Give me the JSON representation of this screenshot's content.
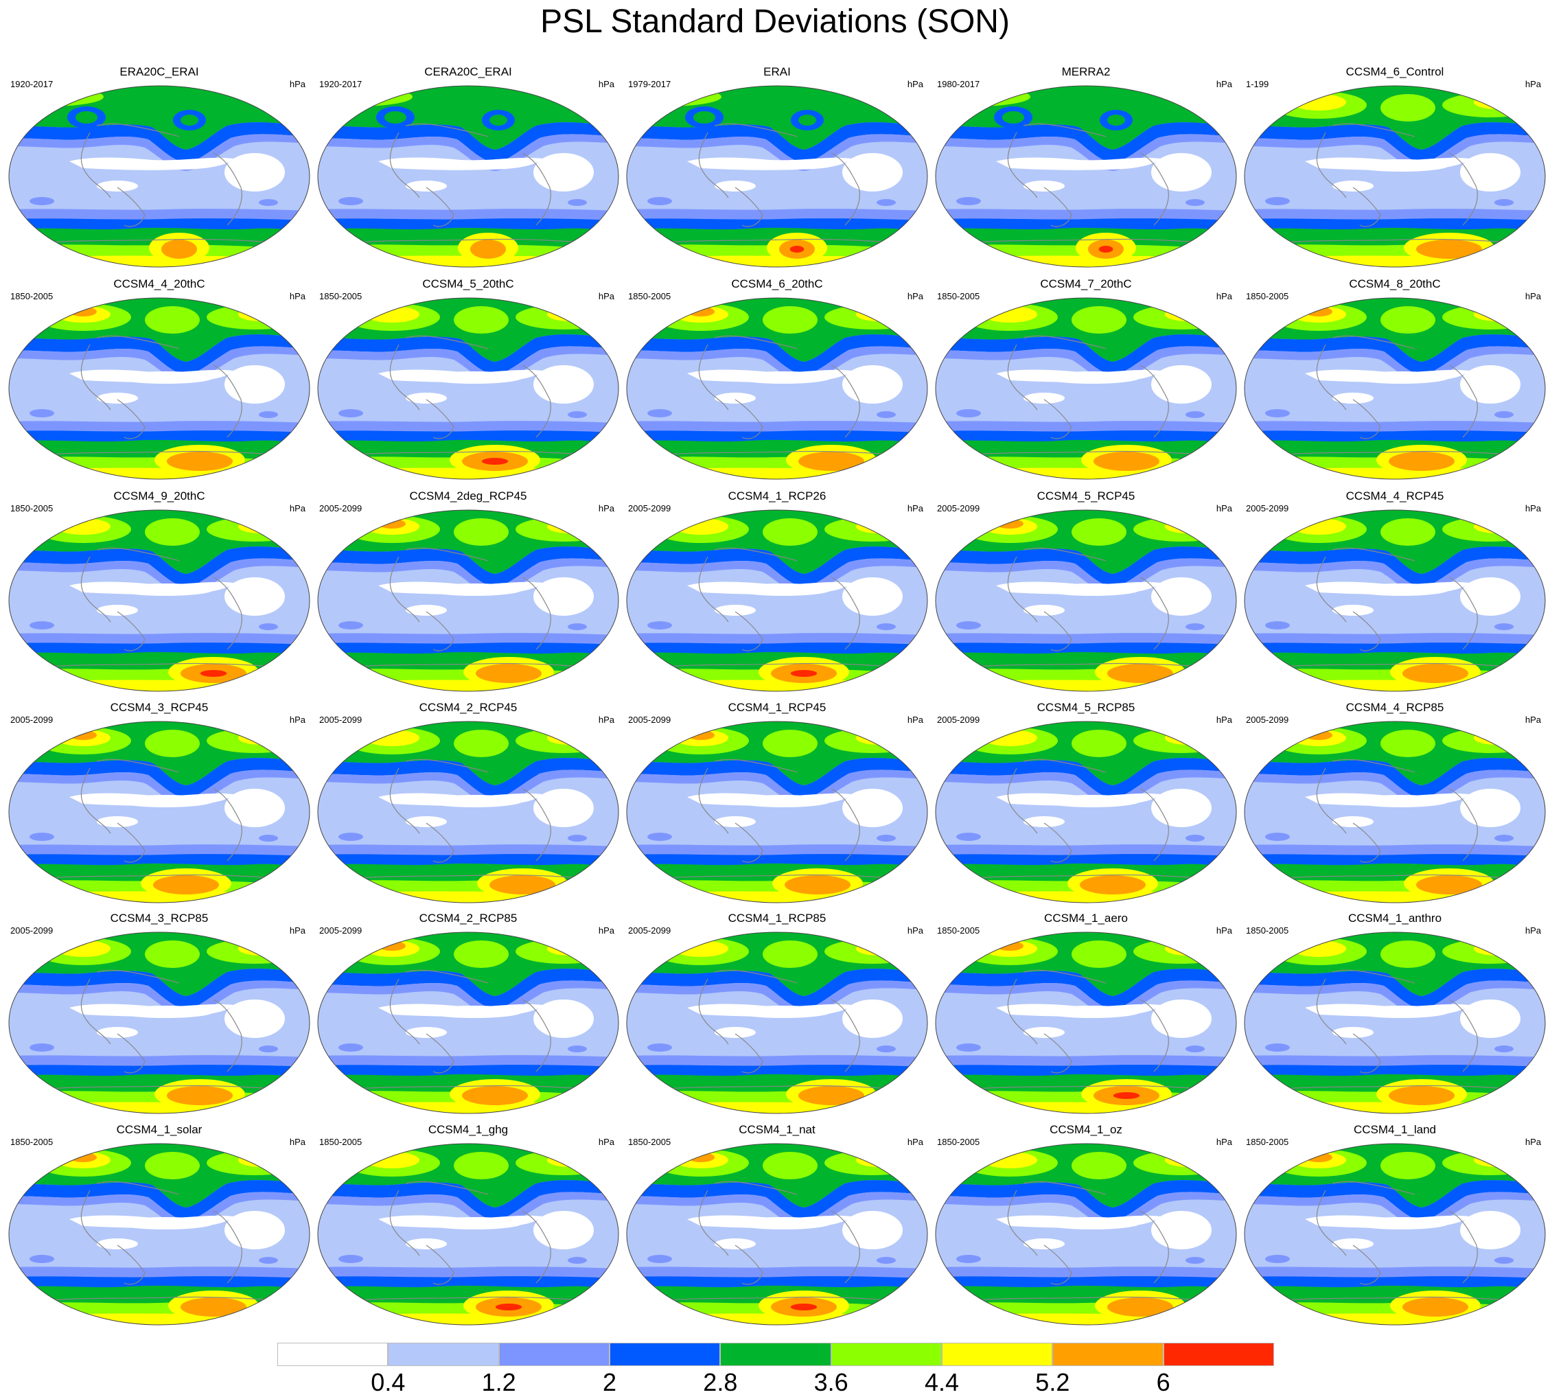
{
  "title": "PSL Standard Deviations (SON)",
  "units": "hPa",
  "panels": [
    {
      "name": "ERA20C_ERAI",
      "period": "1920-2017"
    },
    {
      "name": "CERA20C_ERAI",
      "period": "1920-2017"
    },
    {
      "name": "ERAI",
      "period": "1979-2017"
    },
    {
      "name": "MERRA2",
      "period": "1980-2017"
    },
    {
      "name": "CCSM4_6_Control",
      "period": "1-199"
    },
    {
      "name": "CCSM4_4_20thC",
      "period": "1850-2005"
    },
    {
      "name": "CCSM4_5_20thC",
      "period": "1850-2005"
    },
    {
      "name": "CCSM4_6_20thC",
      "period": "1850-2005"
    },
    {
      "name": "CCSM4_7_20thC",
      "period": "1850-2005"
    },
    {
      "name": "CCSM4_8_20thC",
      "period": "1850-2005"
    },
    {
      "name": "CCSM4_9_20thC",
      "period": "1850-2005"
    },
    {
      "name": "CCSM4_2deg_RCP45",
      "period": "2005-2099"
    },
    {
      "name": "CCSM4_1_RCP26",
      "period": "2005-2099"
    },
    {
      "name": "CCSM4_5_RCP45",
      "period": "2005-2099"
    },
    {
      "name": "CCSM4_4_RCP45",
      "period": "2005-2099"
    },
    {
      "name": "CCSM4_3_RCP45",
      "period": "2005-2099"
    },
    {
      "name": "CCSM4_2_RCP45",
      "period": "2005-2099"
    },
    {
      "name": "CCSM4_1_RCP45",
      "period": "2005-2099"
    },
    {
      "name": "CCSM4_5_RCP85",
      "period": "2005-2099"
    },
    {
      "name": "CCSM4_4_RCP85",
      "period": "2005-2099"
    },
    {
      "name": "CCSM4_3_RCP85",
      "period": "2005-2099"
    },
    {
      "name": "CCSM4_2_RCP85",
      "period": "2005-2099"
    },
    {
      "name": "CCSM4_1_RCP85",
      "period": "2005-2099"
    },
    {
      "name": "CCSM4_1_aero",
      "period": "1850-2005"
    },
    {
      "name": "CCSM4_1_anthro",
      "period": "1850-2005"
    },
    {
      "name": "CCSM4_1_solar",
      "period": "1850-2005"
    },
    {
      "name": "CCSM4_1_ghg",
      "period": "1850-2005"
    },
    {
      "name": "CCSM4_1_nat",
      "period": "1850-2005"
    },
    {
      "name": "CCSM4_1_oz",
      "period": "1850-2005"
    },
    {
      "name": "CCSM4_1_land",
      "period": "1850-2005"
    }
  ],
  "colorbar": {
    "levels": [
      "0.4",
      "1.2",
      "2",
      "2.8",
      "3.6",
      "4.4",
      "5.2",
      "6"
    ],
    "colors": [
      "#ffffff",
      "#b4c8fa",
      "#7d96ff",
      "#005aff",
      "#00b42d",
      "#8cff00",
      "#ffff00",
      "#ffa000",
      "#ff2800"
    ]
  }
}
